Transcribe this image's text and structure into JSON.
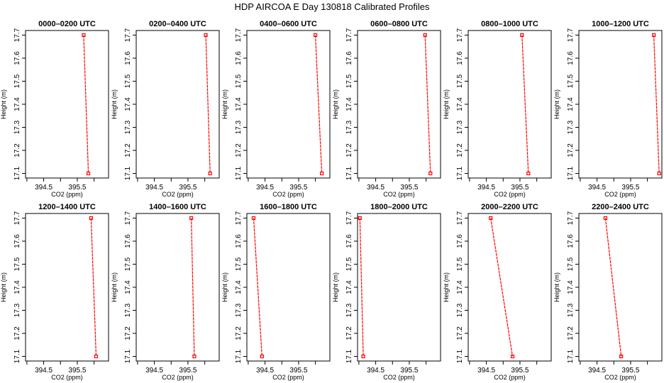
{
  "figure": {
    "title": "HDP AIRCOA E  Day 130818  Calibrated Profiles"
  },
  "colors": {
    "series": "#ff0000",
    "axis": "#000000",
    "background": "#ffffff"
  },
  "chart_data": [
    {
      "type": "line",
      "title": "0000–0200 UTC",
      "xlabel": "CO2 (ppm)",
      "ylabel": "Height (m)",
      "xticks": [
        "394.5",
        "395.5"
      ],
      "yticks": [
        "17.1",
        "17.2",
        "17.3",
        "17.4",
        "17.5",
        "17.6",
        "17.7"
      ],
      "xlim": [
        393.96,
        396.43
      ],
      "ylim": [
        17.08,
        17.72
      ],
      "grid": false,
      "series": [
        {
          "x": [
            395.69,
            395.83
          ],
          "y": [
            17.7,
            17.1
          ]
        }
      ]
    },
    {
      "type": "line",
      "title": "0200–0400 UTC",
      "xlabel": "CO2 (ppm)",
      "ylabel": "Height (m)",
      "xticks": [
        "394.5",
        "395.5"
      ],
      "yticks": [
        "17.1",
        "17.2",
        "17.3",
        "17.4",
        "17.5",
        "17.6",
        "17.7"
      ],
      "xlim": [
        393.96,
        396.43
      ],
      "ylim": [
        17.08,
        17.72
      ],
      "grid": false,
      "series": [
        {
          "x": [
            396.03,
            396.16
          ],
          "y": [
            17.7,
            17.1
          ]
        }
      ]
    },
    {
      "type": "line",
      "title": "0400–0600 UTC",
      "xlabel": "CO2 (ppm)",
      "ylabel": "Height (m)",
      "xticks": [
        "394.5",
        "395.5"
      ],
      "yticks": [
        "17.1",
        "17.2",
        "17.3",
        "17.4",
        "17.5",
        "17.6",
        "17.7"
      ],
      "xlim": [
        393.96,
        396.43
      ],
      "ylim": [
        17.08,
        17.72
      ],
      "grid": false,
      "series": [
        {
          "x": [
            396.0,
            396.19
          ],
          "y": [
            17.7,
            17.1
          ]
        }
      ]
    },
    {
      "type": "line",
      "title": "0600–0800 UTC",
      "xlabel": "CO2 (ppm)",
      "ylabel": "Height (m)",
      "xticks": [
        "394.5",
        "395.5"
      ],
      "yticks": [
        "17.1",
        "17.2",
        "17.3",
        "17.4",
        "17.5",
        "17.6",
        "17.7"
      ],
      "xlim": [
        393.96,
        396.43
      ],
      "ylim": [
        17.08,
        17.72
      ],
      "grid": false,
      "series": [
        {
          "x": [
            395.97,
            396.13
          ],
          "y": [
            17.7,
            17.1
          ]
        }
      ]
    },
    {
      "type": "line",
      "title": "0800–1000 UTC",
      "xlabel": "CO2 (ppm)",
      "ylabel": "Height (m)",
      "xticks": [
        "394.5",
        "395.5"
      ],
      "yticks": [
        "17.1",
        "17.2",
        "17.3",
        "17.4",
        "17.5",
        "17.6",
        "17.7"
      ],
      "xlim": [
        393.96,
        396.43
      ],
      "ylim": [
        17.08,
        17.72
      ],
      "grid": false,
      "series": [
        {
          "x": [
            395.56,
            395.75
          ],
          "y": [
            17.7,
            17.1
          ]
        }
      ]
    },
    {
      "type": "line",
      "title": "1000–1200 UTC",
      "xlabel": "CO2 (ppm)",
      "ylabel": "Height (m)",
      "xticks": [
        "394.5",
        "395.5"
      ],
      "yticks": [
        "17.1",
        "17.2",
        "17.3",
        "17.4",
        "17.5",
        "17.6",
        "17.7"
      ],
      "xlim": [
        393.96,
        396.43
      ],
      "ylim": [
        17.08,
        17.72
      ],
      "grid": false,
      "series": [
        {
          "x": [
            396.19,
            396.35
          ],
          "y": [
            17.7,
            17.1
          ]
        }
      ]
    },
    {
      "type": "line",
      "title": "1200–1400 UTC",
      "xlabel": "CO2 (ppm)",
      "ylabel": "Height (m)",
      "xticks": [
        "394.5",
        "395.5"
      ],
      "yticks": [
        "17.1",
        "17.2",
        "17.3",
        "17.4",
        "17.5",
        "17.6",
        "17.7"
      ],
      "xlim": [
        393.96,
        396.43
      ],
      "ylim": [
        17.08,
        17.72
      ],
      "grid": false,
      "series": [
        {
          "x": [
            395.91,
            396.06
          ],
          "y": [
            17.7,
            17.1
          ]
        }
      ]
    },
    {
      "type": "line",
      "title": "1400–1600 UTC",
      "xlabel": "CO2 (ppm)",
      "ylabel": "Height (m)",
      "xticks": [
        "394.5",
        "395.5"
      ],
      "yticks": [
        "17.1",
        "17.2",
        "17.3",
        "17.4",
        "17.5",
        "17.6",
        "17.7"
      ],
      "xlim": [
        393.96,
        396.43
      ],
      "ylim": [
        17.08,
        17.72
      ],
      "grid": false,
      "series": [
        {
          "x": [
            395.6,
            395.69
          ],
          "y": [
            17.7,
            17.1
          ]
        }
      ]
    },
    {
      "type": "line",
      "title": "1600–1800 UTC",
      "xlabel": "CO2 (ppm)",
      "ylabel": "Height (m)",
      "xticks": [
        "394.5",
        "395.5"
      ],
      "yticks": [
        "17.1",
        "17.2",
        "17.3",
        "17.4",
        "17.5",
        "17.6",
        "17.7"
      ],
      "xlim": [
        393.96,
        396.43
      ],
      "ylim": [
        17.08,
        17.72
      ],
      "grid": false,
      "series": [
        {
          "x": [
            394.16,
            394.41
          ],
          "y": [
            17.7,
            17.1
          ]
        }
      ]
    },
    {
      "type": "line",
      "title": "1800–2000 UTC",
      "xlabel": "CO2 (ppm)",
      "ylabel": "Height (m)",
      "xticks": [
        "394.5",
        "395.5"
      ],
      "yticks": [
        "17.1",
        "17.2",
        "17.3",
        "17.4",
        "17.5",
        "17.6",
        "17.7"
      ],
      "xlim": [
        393.96,
        396.43
      ],
      "ylim": [
        17.08,
        17.72
      ],
      "grid": false,
      "series": [
        {
          "x": [
            394.03,
            394.13
          ],
          "y": [
            17.7,
            17.1
          ]
        }
      ]
    },
    {
      "type": "line",
      "title": "2000–2200 UTC",
      "xlabel": "CO2 (ppm)",
      "ylabel": "Height (m)",
      "xticks": [
        "394.5",
        "395.5"
      ],
      "yticks": [
        "17.1",
        "17.2",
        "17.3",
        "17.4",
        "17.5",
        "17.6",
        "17.7"
      ],
      "xlim": [
        393.96,
        396.43
      ],
      "ylim": [
        17.08,
        17.72
      ],
      "grid": false,
      "series": [
        {
          "x": [
            394.63,
            395.28
          ],
          "y": [
            17.7,
            17.1
          ]
        }
      ]
    },
    {
      "type": "line",
      "title": "2200–2400 UTC",
      "xlabel": "CO2 (ppm)",
      "ylabel": "Height (m)",
      "xticks": [
        "394.5",
        "395.5"
      ],
      "yticks": [
        "17.1",
        "17.2",
        "17.3",
        "17.4",
        "17.5",
        "17.6",
        "17.7"
      ],
      "xlim": [
        393.96,
        396.43
      ],
      "ylim": [
        17.08,
        17.72
      ],
      "grid": false,
      "series": [
        {
          "x": [
            394.75,
            395.22
          ],
          "y": [
            17.7,
            17.1
          ]
        }
      ]
    }
  ]
}
